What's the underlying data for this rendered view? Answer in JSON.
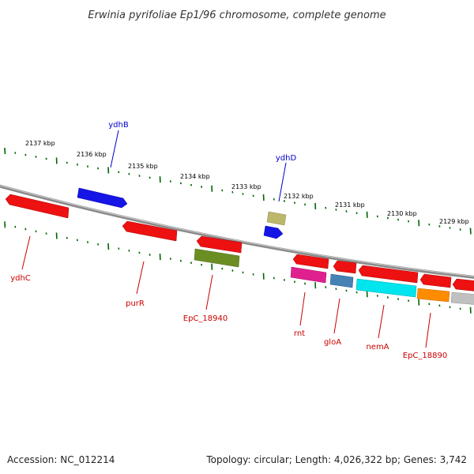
{
  "title": "Erwinia pyrifoliae Ep1/96 chromosome, complete genome",
  "footer": {
    "accession": "Accession: NC_012214",
    "summary": "Topology: circular; Length: 4,026,322 bp; Genes: 3,742"
  },
  "scale": {
    "tick_labels": [
      "2137 kbp",
      "2136 kbp",
      "2135 kbp",
      "2134 kbp",
      "2133 kbp",
      "2132 kbp",
      "2131 kbp",
      "2130 kbp",
      "2129 kbp"
    ]
  },
  "labels": {
    "above": [
      {
        "text": "ydhB",
        "color": "#0000cc"
      },
      {
        "text": "ydhD",
        "color": "#0000cc"
      }
    ],
    "below": [
      {
        "text": "ydhC",
        "color": "#cc0000"
      },
      {
        "text": "purR",
        "color": "#cc0000"
      },
      {
        "text": "EpC_18940",
        "color": "#cc0000"
      },
      {
        "text": "rnt",
        "color": "#cc0000"
      },
      {
        "text": "gloA",
        "color": "#cc0000"
      },
      {
        "text": "nemA",
        "color": "#cc0000"
      },
      {
        "text": "EpC_18890",
        "color": "#cc0000"
      }
    ]
  },
  "colors": {
    "backbone": "#888888",
    "tick": "#006600",
    "red_gene": "#ee1111",
    "blue_gene": "#1111ee",
    "olive_gene": "#6b8e23",
    "khaki_gene": "#bdb76b",
    "magenta_gene": "#e0208f",
    "steel_gene": "#4682b4",
    "cyan_gene": "#00e5ee",
    "orange_gene": "#ff8c00",
    "grey_gene": "#c0c0c0"
  }
}
